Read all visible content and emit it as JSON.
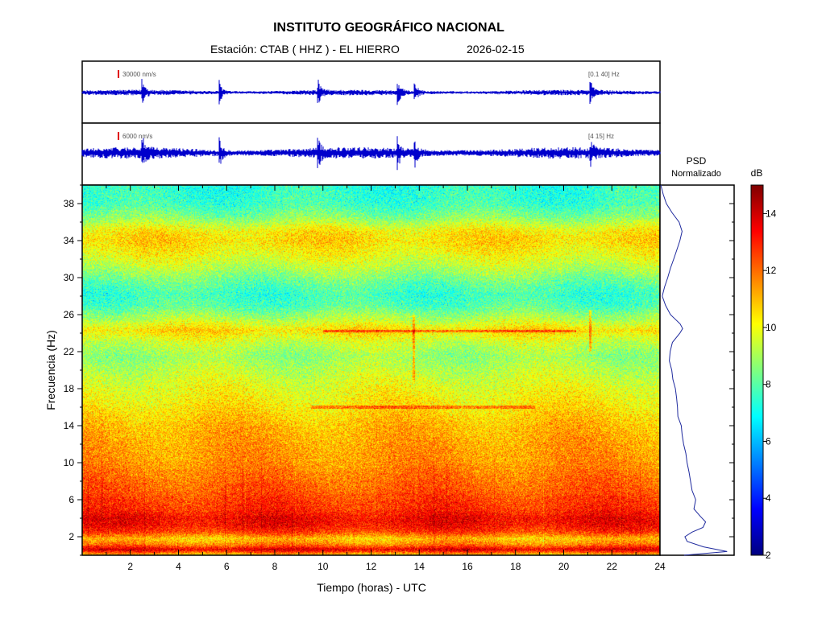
{
  "header": {
    "title": "INSTITUTO GEOGRÁFICO NACIONAL",
    "station": "Estación:  CTAB ( HHZ ) - EL HIERRO",
    "date": "2026-02-15"
  },
  "colors": {
    "trace": "#0000cc",
    "scale_bar": "#e00000",
    "psd_line": "#1f2a9e"
  },
  "chart_data": [
    {
      "type": "line",
      "name": "seismogram-broadband",
      "scale_label": "30000 nm/s",
      "filter_label": "[0.1 40] Hz",
      "x_range": [
        0,
        24
      ],
      "events_hours": [
        2.5,
        5.7,
        9.8,
        13.1,
        13.8,
        21.1
      ]
    },
    {
      "type": "line",
      "name": "seismogram-filtered",
      "scale_label": "6000 nm/s",
      "filter_label": "[4 15] Hz",
      "x_range": [
        0,
        24
      ],
      "events_hours": [
        2.5,
        5.7,
        9.8,
        13.1,
        13.8,
        21.1
      ]
    },
    {
      "type": "heatmap",
      "xlabel": "Tiempo (horas) - UTC",
      "ylabel": "Frecuencia  (Hz)",
      "xlim": [
        0,
        24
      ],
      "ylim": [
        0,
        40
      ],
      "x_ticks": [
        2,
        4,
        6,
        8,
        10,
        12,
        14,
        16,
        18,
        20,
        22,
        24
      ],
      "y_ticks": [
        2,
        6,
        10,
        14,
        18,
        22,
        26,
        30,
        34,
        38
      ],
      "colorbar": {
        "label": "dB",
        "range": [
          2,
          15
        ],
        "ticks": [
          2,
          4,
          6,
          8,
          10,
          12,
          14
        ],
        "colormap": [
          "#00007f",
          "#0000ff",
          "#007fff",
          "#00ffff",
          "#7fff7f",
          "#ffff00",
          "#ff7f00",
          "#ff0000",
          "#7f0000"
        ]
      },
      "db_profile": {
        "freq_hz": [
          0,
          0.6,
          1.2,
          1.8,
          2.5,
          3.2,
          4,
          5,
          6,
          7,
          8,
          10,
          12,
          14,
          16,
          18,
          20,
          21.5,
          23,
          24.3,
          25.5,
          27,
          28.2,
          29.5,
          31,
          32.5,
          34,
          35,
          36.5,
          38,
          40
        ],
        "db": [
          10.5,
          13.8,
          11.6,
          10.8,
          12.6,
          13.3,
          13.5,
          12.8,
          12.6,
          12.2,
          12.0,
          11.5,
          11.3,
          11.0,
          10.4,
          9.9,
          9.3,
          8.8,
          9.5,
          10.6,
          9.2,
          7.9,
          7.6,
          8.2,
          9.2,
          10.0,
          10.6,
          10.3,
          8.6,
          7.6,
          7.4
        ]
      },
      "features": [
        {
          "kind": "horizontal-line",
          "freq_hz": 16,
          "t_start": 9.5,
          "t_end": 18.8
        },
        {
          "kind": "horizontal-line",
          "freq_hz": 24.2,
          "t_start": 10.0,
          "t_end": 20.5
        },
        {
          "kind": "vertical-line",
          "time_h": 21.1,
          "f_low": 22,
          "f_high": 26.5
        },
        {
          "kind": "vertical-line",
          "time_h": 13.75,
          "f_low": 19,
          "f_high": 26
        }
      ]
    },
    {
      "type": "line",
      "name": "psd-normalizado",
      "title_line1": "PSD",
      "title_line2": "Normalizado",
      "freq_hz": [
        0,
        0.4,
        0.9,
        1.5,
        2,
        2.5,
        3,
        3.6,
        4.2,
        5,
        6,
        7,
        8,
        9,
        10,
        11,
        12,
        13,
        14,
        15,
        16,
        17,
        18,
        19,
        20,
        21,
        22,
        23,
        24,
        24.5,
        25,
        26,
        27,
        28,
        29,
        30,
        31,
        32,
        33,
        34,
        35,
        36,
        37,
        38,
        39,
        40
      ],
      "psd": [
        0.33,
        0.96,
        0.62,
        0.38,
        0.35,
        0.44,
        0.62,
        0.66,
        0.58,
        0.48,
        0.5,
        0.44,
        0.42,
        0.4,
        0.38,
        0.35,
        0.33,
        0.3,
        0.28,
        0.25,
        0.24,
        0.22,
        0.2,
        0.17,
        0.14,
        0.11,
        0.12,
        0.17,
        0.26,
        0.3,
        0.27,
        0.14,
        0.06,
        0.02,
        0.04,
        0.08,
        0.12,
        0.17,
        0.23,
        0.28,
        0.3,
        0.25,
        0.16,
        0.07,
        0.03,
        0.0
      ]
    }
  ]
}
